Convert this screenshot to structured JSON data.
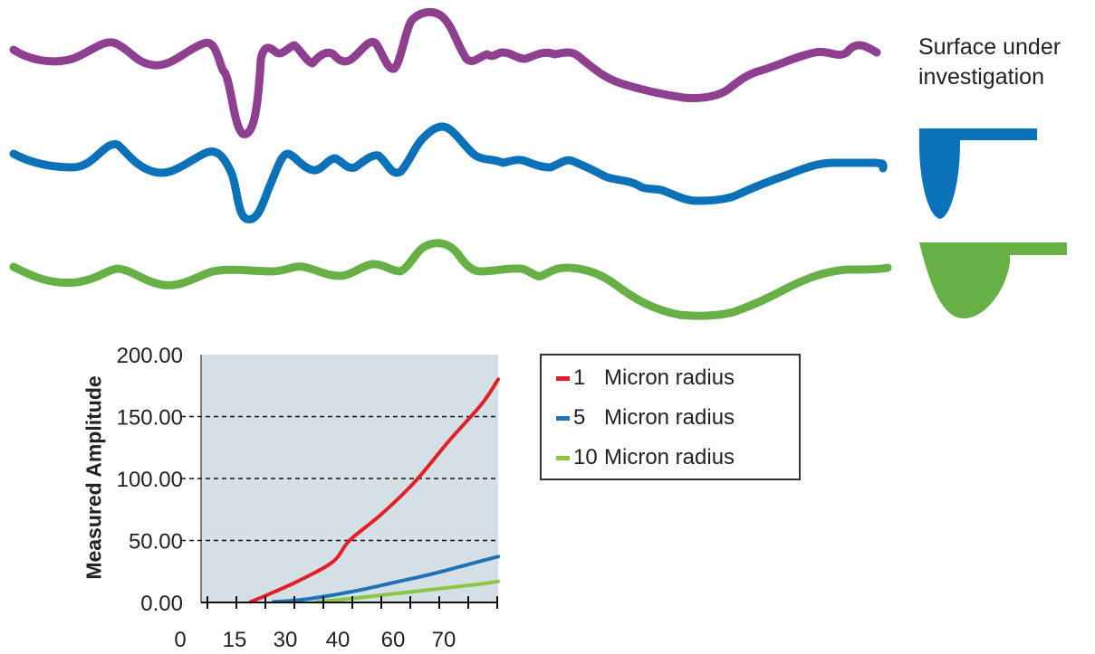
{
  "surface_label": [
    "Surface under",
    "investigation"
  ],
  "profile_colors": {
    "surface": "#8e3f90",
    "probe_5": "#0b71b8",
    "probe_10": "#66b046"
  },
  "probe_icons": [
    {
      "name": "5-micron-probe-icon",
      "color": "#0b71b8"
    },
    {
      "name": "10-micron-probe-icon",
      "color": "#66b046"
    }
  ],
  "chart_data": {
    "type": "line",
    "ylabel": "Measured Amplitude",
    "xlabel": "",
    "x_ticks": [
      "0",
      "15",
      "30",
      "40",
      "60",
      "70"
    ],
    "y_ticks": [
      "0.00",
      "50.00",
      "100.00",
      "150.00",
      "200.00"
    ],
    "ylim": [
      0,
      200
    ],
    "grid": "horizontal dashed",
    "plot_background": "#d5dfe6",
    "legend_position": "right",
    "series": [
      {
        "name": "1 Micron radius",
        "label_num": "1",
        "label_text": "Micron radius",
        "color": "#e31e25",
        "points": [
          [
            15,
            0.5
          ],
          [
            20,
            6
          ],
          [
            30,
            18
          ],
          [
            40,
            33
          ],
          [
            45,
            50
          ],
          [
            55,
            72
          ],
          [
            65,
            98
          ],
          [
            75,
            130
          ],
          [
            85,
            160
          ],
          [
            90,
            180
          ]
        ]
      },
      {
        "name": "5 Micron radius",
        "label_num": "5",
        "label_text": "Micron radius",
        "color": "#1d72b8",
        "points": [
          [
            22,
            0.5
          ],
          [
            30,
            2
          ],
          [
            40,
            6
          ],
          [
            50,
            11
          ],
          [
            60,
            17
          ],
          [
            70,
            23
          ],
          [
            80,
            30
          ],
          [
            90,
            37
          ]
        ]
      },
      {
        "name": "10 Micron radius",
        "label_num": "10",
        "label_text": "Micron radius",
        "color": "#8bc645",
        "points": [
          [
            35,
            0.5
          ],
          [
            45,
            3
          ],
          [
            55,
            6
          ],
          [
            65,
            9
          ],
          [
            75,
            12
          ],
          [
            85,
            15
          ],
          [
            90,
            17
          ]
        ]
      }
    ]
  }
}
